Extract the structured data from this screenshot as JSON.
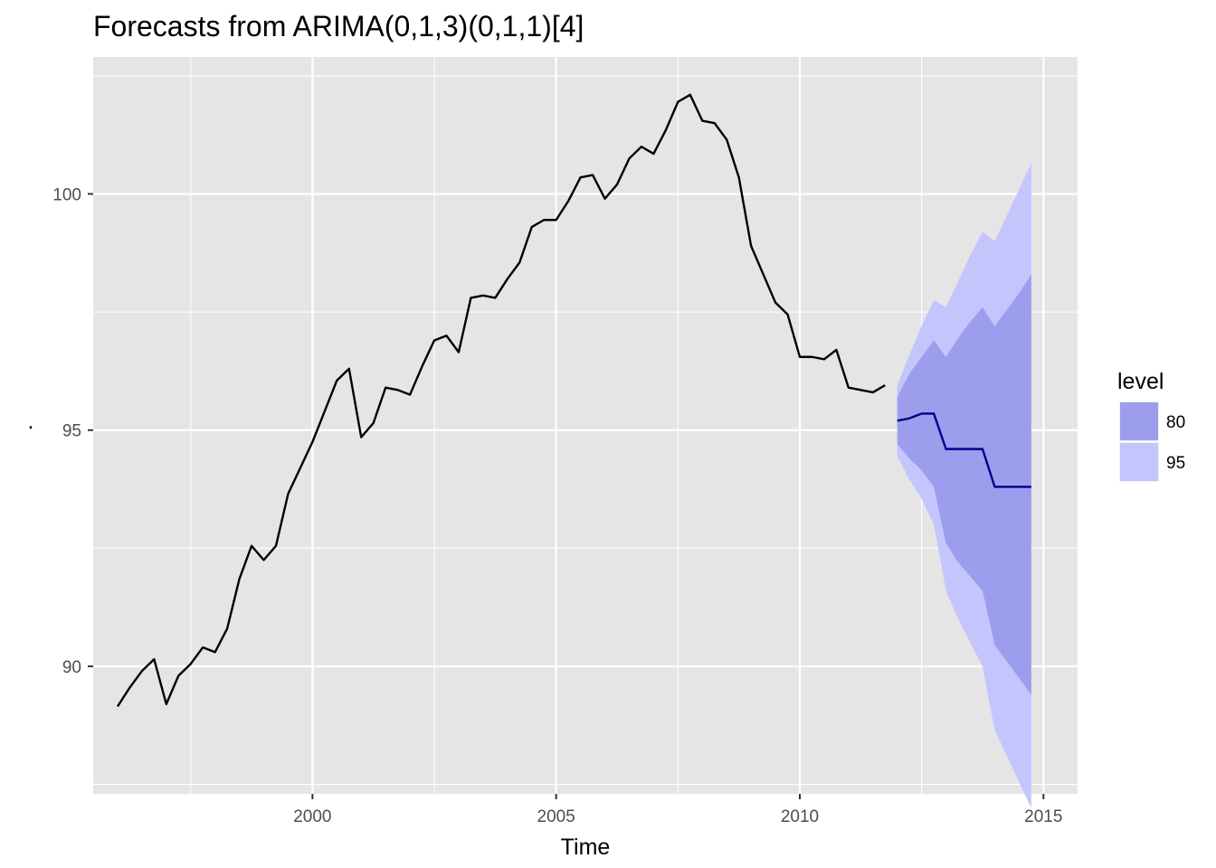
{
  "chart_data": {
    "type": "line",
    "title": "Forecasts from ARIMA(0,1,3)(0,1,1)[4]",
    "xlabel": "Time",
    "ylabel": ".",
    "xlim": [
      1995.5,
      2015.7
    ],
    "ylim": [
      87.3,
      102.9
    ],
    "x_ticks": [
      2000,
      2005,
      2010,
      2015
    ],
    "x_tick_labels": [
      "2000",
      "2005",
      "2010",
      "2015"
    ],
    "y_ticks": [
      90,
      95,
      100
    ],
    "y_tick_labels": [
      "90",
      "95",
      "100"
    ],
    "grid": true,
    "colors": {
      "panel_bg": "#e5e5e5",
      "grid": "#ffffff",
      "history": "#000000",
      "forecast": "#00008b",
      "band_80": "#9c9eed",
      "band_95": "#c3c5fc"
    },
    "history": {
      "name": "observed",
      "start": 1996.0,
      "step": 0.25,
      "values": [
        89.15,
        89.55,
        89.9,
        90.15,
        89.2,
        89.8,
        90.05,
        90.4,
        90.3,
        90.8,
        91.85,
        92.55,
        92.25,
        92.55,
        93.65,
        94.2,
        94.75,
        95.4,
        96.05,
        96.3,
        94.85,
        95.15,
        95.9,
        95.85,
        95.75,
        96.35,
        96.9,
        97.0,
        96.65,
        97.8,
        97.85,
        97.8,
        98.2,
        98.55,
        99.3,
        99.45,
        99.45,
        99.85,
        100.35,
        100.4,
        99.9,
        100.2,
        100.75,
        101.0,
        100.85,
        101.35,
        101.95,
        102.1,
        101.55,
        101.5,
        101.15,
        100.35,
        98.9,
        98.3,
        97.7,
        97.45,
        96.55,
        96.55,
        96.5,
        96.7,
        95.9,
        95.85,
        95.8,
        95.95
      ]
    },
    "forecast": {
      "name": "point forecast",
      "start": 2012.0,
      "step": 0.25,
      "values": [
        95.2,
        95.25,
        95.35,
        95.35,
        94.6,
        94.6,
        94.6,
        94.6,
        93.8,
        93.8,
        93.8,
        93.8
      ]
    },
    "bands": [
      {
        "level": "80",
        "lower": [
          94.7,
          94.4,
          94.15,
          93.8,
          92.6,
          92.2,
          91.9,
          91.6,
          90.45,
          90.1,
          89.75,
          89.4
        ],
        "upper": [
          95.7,
          96.2,
          96.55,
          96.9,
          96.55,
          96.95,
          97.3,
          97.6,
          97.2,
          97.55,
          97.9,
          98.3
        ]
      },
      {
        "level": "95",
        "lower": [
          94.45,
          93.95,
          93.55,
          93.0,
          91.6,
          91.0,
          90.5,
          90.0,
          88.65,
          88.1,
          87.55,
          87.0
        ],
        "upper": [
          95.95,
          96.6,
          97.2,
          97.75,
          97.6,
          98.15,
          98.7,
          99.2,
          99.0,
          99.55,
          100.1,
          100.65
        ]
      }
    ],
    "legend": {
      "title": "level",
      "position": "right",
      "entries": [
        {
          "label": "80",
          "color": "#9c9eed"
        },
        {
          "label": "95",
          "color": "#c3c5fc"
        }
      ]
    }
  }
}
